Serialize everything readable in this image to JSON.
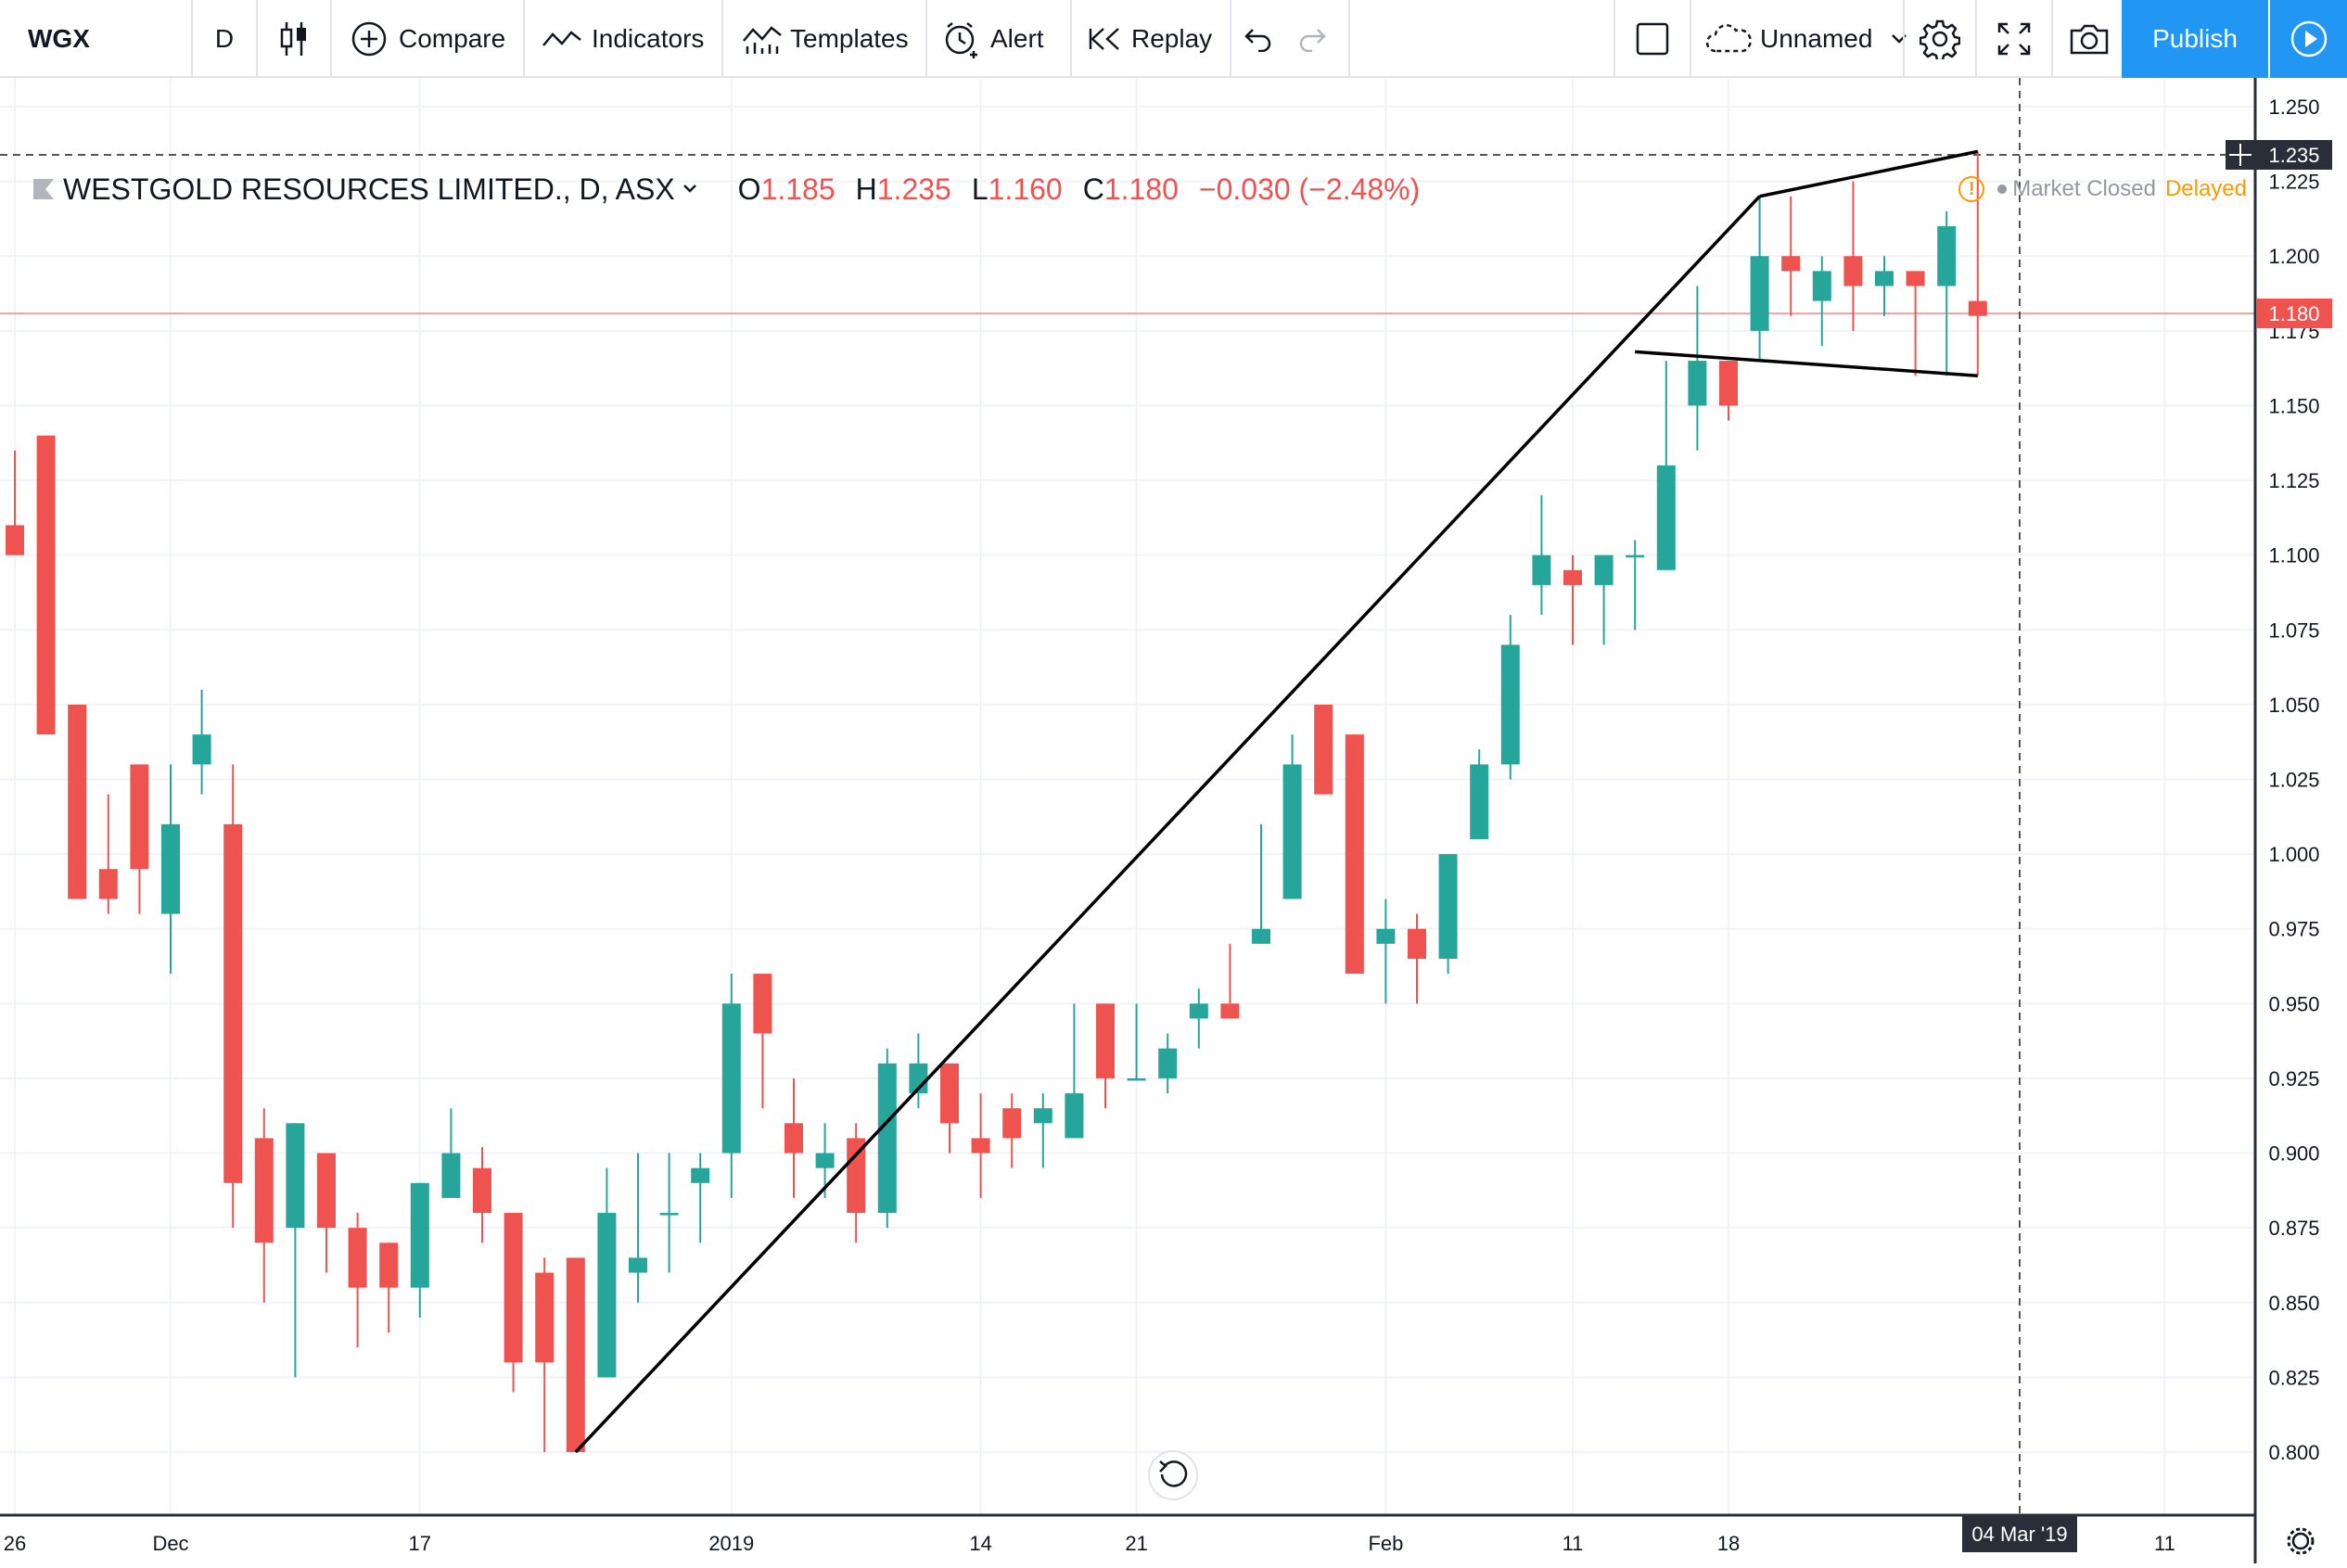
{
  "toolbar": {
    "symbol": "WGX",
    "interval": "D",
    "compare": "Compare",
    "indicators": "Indicators",
    "templates": "Templates",
    "alert": "Alert",
    "replay": "Replay",
    "layout_name": "Unnamed",
    "publish": "Publish"
  },
  "legend": {
    "symbol_title": "WESTGOLD RESOURCES LIMITED., D, ASX",
    "open_label": "O",
    "open": "1.185",
    "high_label": "H",
    "high": "1.235",
    "low_label": "L",
    "low": "1.160",
    "close_label": "C",
    "close": "1.180",
    "change": "−0.030 (−2.48%)"
  },
  "status": {
    "market": "Market Closed",
    "delay": "Delayed"
  },
  "colors": {
    "up": "#26a69a",
    "down": "#ef5350",
    "accent": "#2196f3",
    "warning": "#ff9800"
  },
  "chart_data": {
    "type": "candlestick",
    "ylim": [
      0.78,
      1.25
    ],
    "y_ticks": [
      "1.250",
      "1.225",
      "1.200",
      "1.175",
      "1.150",
      "1.125",
      "1.100",
      "1.075",
      "1.050",
      "1.025",
      "1.000",
      "0.975",
      "0.950",
      "0.925",
      "0.900",
      "0.875",
      "0.850",
      "0.825",
      "0.800"
    ],
    "x_ticks": [
      "26",
      "Dec",
      "17",
      "2019",
      "14",
      "21",
      "Feb",
      "11",
      "18",
      "11"
    ],
    "crosshair": {
      "date": "04 Mar '19",
      "price": "1.235"
    },
    "last_price": "1.180",
    "candles": [
      {
        "o": 1.11,
        "h": 1.135,
        "l": 1.1,
        "c": 1.1
      },
      {
        "o": 1.14,
        "h": 1.14,
        "l": 1.04,
        "c": 1.04
      },
      {
        "o": 1.05,
        "h": 1.05,
        "l": 0.985,
        "c": 0.985
      },
      {
        "o": 0.995,
        "h": 1.02,
        "l": 0.98,
        "c": 0.985
      },
      {
        "o": 1.03,
        "h": 1.03,
        "l": 0.98,
        "c": 0.995
      },
      {
        "o": 0.98,
        "h": 1.03,
        "l": 0.96,
        "c": 1.01
      },
      {
        "o": 1.03,
        "h": 1.055,
        "l": 1.02,
        "c": 1.04
      },
      {
        "o": 1.01,
        "h": 1.03,
        "l": 0.875,
        "c": 0.89
      },
      {
        "o": 0.905,
        "h": 0.915,
        "l": 0.85,
        "c": 0.87
      },
      {
        "o": 0.875,
        "h": 0.91,
        "l": 0.825,
        "c": 0.91
      },
      {
        "o": 0.9,
        "h": 0.9,
        "l": 0.86,
        "c": 0.875
      },
      {
        "o": 0.875,
        "h": 0.88,
        "l": 0.835,
        "c": 0.855
      },
      {
        "o": 0.87,
        "h": 0.87,
        "l": 0.84,
        "c": 0.855
      },
      {
        "o": 0.855,
        "h": 0.89,
        "l": 0.845,
        "c": 0.89
      },
      {
        "o": 0.885,
        "h": 0.915,
        "l": 0.885,
        "c": 0.9
      },
      {
        "o": 0.895,
        "h": 0.902,
        "l": 0.87,
        "c": 0.88
      },
      {
        "o": 0.88,
        "h": 0.88,
        "l": 0.82,
        "c": 0.83
      },
      {
        "o": 0.86,
        "h": 0.865,
        "l": 0.8,
        "c": 0.83
      },
      {
        "o": 0.865,
        "h": 0.865,
        "l": 0.8,
        "c": 0.8
      },
      {
        "o": 0.825,
        "h": 0.895,
        "l": 0.825,
        "c": 0.88
      },
      {
        "o": 0.86,
        "h": 0.9,
        "l": 0.85,
        "c": 0.865
      },
      {
        "o": 0.88,
        "h": 0.9,
        "l": 0.86,
        "c": 0.88
      },
      {
        "o": 0.89,
        "h": 0.9,
        "l": 0.87,
        "c": 0.895
      },
      {
        "o": 0.9,
        "h": 0.96,
        "l": 0.885,
        "c": 0.95
      },
      {
        "o": 0.96,
        "h": 0.96,
        "l": 0.915,
        "c": 0.94
      },
      {
        "o": 0.91,
        "h": 0.925,
        "l": 0.885,
        "c": 0.9
      },
      {
        "o": 0.895,
        "h": 0.91,
        "l": 0.885,
        "c": 0.9
      },
      {
        "o": 0.905,
        "h": 0.91,
        "l": 0.87,
        "c": 0.88
      },
      {
        "o": 0.88,
        "h": 0.935,
        "l": 0.875,
        "c": 0.93
      },
      {
        "o": 0.92,
        "h": 0.94,
        "l": 0.915,
        "c": 0.93
      },
      {
        "o": 0.93,
        "h": 0.93,
        "l": 0.9,
        "c": 0.91
      },
      {
        "o": 0.905,
        "h": 0.92,
        "l": 0.885,
        "c": 0.9
      },
      {
        "o": 0.915,
        "h": 0.92,
        "l": 0.895,
        "c": 0.905
      },
      {
        "o": 0.91,
        "h": 0.92,
        "l": 0.895,
        "c": 0.915
      },
      {
        "o": 0.905,
        "h": 0.95,
        "l": 0.905,
        "c": 0.92
      },
      {
        "o": 0.95,
        "h": 0.95,
        "l": 0.915,
        "c": 0.925
      },
      {
        "o": 0.925,
        "h": 0.95,
        "l": 0.925,
        "c": 0.925
      },
      {
        "o": 0.925,
        "h": 0.94,
        "l": 0.92,
        "c": 0.935
      },
      {
        "o": 0.945,
        "h": 0.955,
        "l": 0.935,
        "c": 0.95
      },
      {
        "o": 0.95,
        "h": 0.97,
        "l": 0.945,
        "c": 0.945
      },
      {
        "o": 0.97,
        "h": 1.01,
        "l": 0.97,
        "c": 0.975
      },
      {
        "o": 0.985,
        "h": 1.04,
        "l": 0.985,
        "c": 1.03
      },
      {
        "o": 1.05,
        "h": 1.05,
        "l": 1.02,
        "c": 1.02
      },
      {
        "o": 1.04,
        "h": 1.04,
        "l": 0.96,
        "c": 0.96
      },
      {
        "o": 0.97,
        "h": 0.985,
        "l": 0.95,
        "c": 0.975
      },
      {
        "o": 0.975,
        "h": 0.98,
        "l": 0.95,
        "c": 0.965
      },
      {
        "o": 0.965,
        "h": 1.0,
        "l": 0.96,
        "c": 1.0
      },
      {
        "o": 1.005,
        "h": 1.035,
        "l": 1.005,
        "c": 1.03
      },
      {
        "o": 1.03,
        "h": 1.08,
        "l": 1.025,
        "c": 1.07
      },
      {
        "o": 1.09,
        "h": 1.12,
        "l": 1.08,
        "c": 1.1
      },
      {
        "o": 1.095,
        "h": 1.1,
        "l": 1.07,
        "c": 1.09
      },
      {
        "o": 1.09,
        "h": 1.1,
        "l": 1.07,
        "c": 1.1
      },
      {
        "o": 1.1,
        "h": 1.105,
        "l": 1.075,
        "c": 1.1
      },
      {
        "o": 1.095,
        "h": 1.165,
        "l": 1.095,
        "c": 1.13
      },
      {
        "o": 1.15,
        "h": 1.19,
        "l": 1.135,
        "c": 1.165
      },
      {
        "o": 1.165,
        "h": 1.165,
        "l": 1.145,
        "c": 1.15
      },
      {
        "o": 1.175,
        "h": 1.22,
        "l": 1.165,
        "c": 1.2
      },
      {
        "o": 1.2,
        "h": 1.22,
        "l": 1.18,
        "c": 1.195
      },
      {
        "o": 1.185,
        "h": 1.2,
        "l": 1.17,
        "c": 1.195
      },
      {
        "o": 1.2,
        "h": 1.225,
        "l": 1.175,
        "c": 1.19
      },
      {
        "o": 1.19,
        "h": 1.2,
        "l": 1.18,
        "c": 1.195
      },
      {
        "o": 1.195,
        "h": 1.195,
        "l": 1.16,
        "c": 1.19
      },
      {
        "o": 1.19,
        "h": 1.215,
        "l": 1.16,
        "c": 1.21
      },
      {
        "o": 1.185,
        "h": 1.235,
        "l": 1.16,
        "c": 1.18
      }
    ],
    "trendlines": [
      {
        "from": [
          18,
          0.8
        ],
        "to": [
          56,
          1.22
        ]
      },
      {
        "from": [
          56,
          1.22
        ],
        "to": [
          63,
          1.235
        ]
      },
      {
        "from": [
          52,
          1.168
        ],
        "to": [
          63,
          1.16
        ]
      }
    ]
  }
}
